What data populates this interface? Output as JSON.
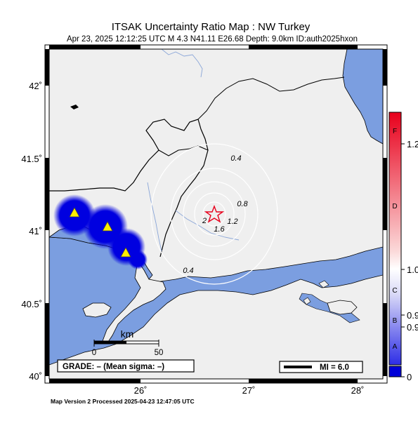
{
  "header": {
    "title": "ITSAK Uncertainty Ratio Map : NW Turkey",
    "subtitle": "Apr 23, 2025 12:12:25 UTC   M 4.3   N41.11 E26.68   Depth: 9.0km   ID:auth2025hxon"
  },
  "axes": {
    "lat_ticks": [
      "42˚",
      "41.5˚",
      "41˚",
      "40.5˚",
      "40˚"
    ],
    "lon_ticks": [
      "26˚",
      "27˚",
      "28˚"
    ]
  },
  "contours": [
    "0.4",
    "0.8",
    "1.2",
    "1.6",
    "2",
    "0.4"
  ],
  "scalebar": {
    "unit": "km",
    "start": "0",
    "end": "50"
  },
  "grade_box": {
    "label": "GRADE: – (Mean sigma: –)"
  },
  "mi_legend": {
    "label": "MI = 6.0"
  },
  "footer": {
    "text": "Map Version 2 Processed 2025-04-23 12:47:05 UTC"
  },
  "colorbar": {
    "grades": [
      "F",
      "D",
      "C",
      "B",
      "A"
    ],
    "values": [
      "1.2",
      "1.0",
      "0.9",
      "0.9",
      "0"
    ],
    "colors": {
      "top": "#e8001c",
      "mid": "#ffffff",
      "bottom": "#1414e0"
    }
  },
  "map_colors": {
    "land": "#efefef",
    "water": "#7b9ee0",
    "border": "#000000",
    "river": "#8aa6d8",
    "contour": "#ffffff"
  },
  "stations": [
    {
      "lat": 41.13,
      "lon": 25.42
    },
    {
      "lat": 41.02,
      "lon": 25.67
    },
    {
      "lat": 40.85,
      "lon": 25.88
    }
  ],
  "epicenter": {
    "lat": 41.11,
    "lon": 26.68
  }
}
